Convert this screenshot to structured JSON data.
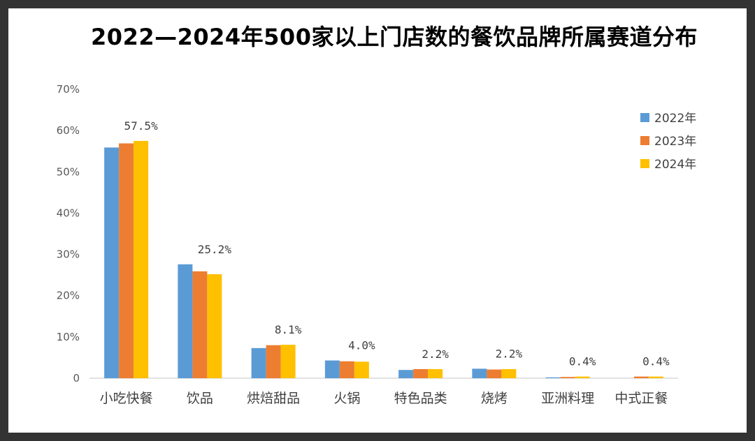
{
  "chart_data": {
    "type": "bar",
    "title": "2022—2024年500家以上门店数的餐饮品牌所属赛道分布",
    "categories": [
      "小吃快餐",
      "饮品",
      "烘焙甜品",
      "火锅",
      "特色品类",
      "烧烤",
      "亚洲料理",
      "中式正餐"
    ],
    "series": [
      {
        "name": "2022年",
        "color": "#5B9BD5",
        "values": [
          55.9,
          27.6,
          7.3,
          4.3,
          2.0,
          2.3,
          0.2,
          0.0
        ]
      },
      {
        "name": "2023年",
        "color": "#ED7D31",
        "values": [
          56.9,
          25.9,
          8.0,
          4.1,
          2.2,
          2.1,
          0.3,
          0.4
        ]
      },
      {
        "name": "2024年",
        "color": "#FFC000",
        "values": [
          57.5,
          25.2,
          8.1,
          4.0,
          2.2,
          2.2,
          0.4,
          0.4
        ]
      }
    ],
    "data_labels": [
      "57.5%",
      "25.2%",
      "8.1%",
      "4.0%",
      "2.2%",
      "2.2%",
      "0.4%",
      "0.4%"
    ],
    "y_tick_labels": [
      "0",
      "10%",
      "20%",
      "30%",
      "40%",
      "50%",
      "60%",
      "70%"
    ],
    "ylim": [
      0,
      70
    ],
    "grid": false,
    "legend_position": "top-right"
  }
}
